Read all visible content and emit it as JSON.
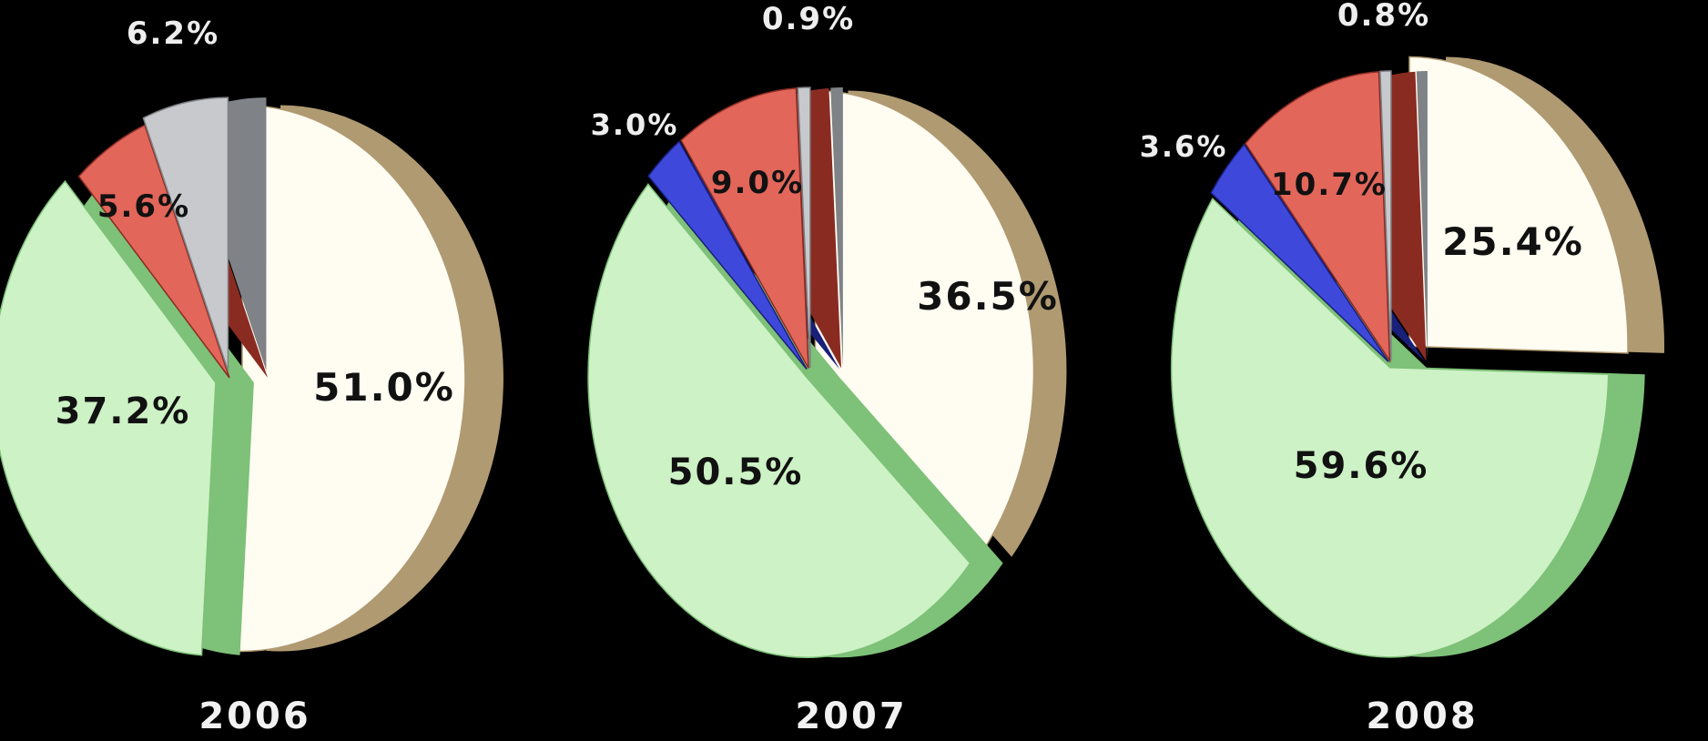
{
  "chart_data": [
    {
      "type": "pie",
      "title": "2006",
      "slices": [
        {
          "value": 51.0,
          "label": "51.0%",
          "color": "#fffdf2",
          "edge": "#b09a72"
        },
        {
          "value": 37.2,
          "label": "37.2%",
          "color": "#cdf2c5",
          "edge": "#7ec178"
        },
        {
          "value": 5.6,
          "label": "5.6%",
          "color": "#e2665a",
          "edge": "#8a2b22"
        },
        {
          "value": 6.2,
          "label": "6.2%",
          "color": "#c7c9cc",
          "edge": "#7f8286"
        }
      ]
    },
    {
      "type": "pie",
      "title": "2007",
      "slices": [
        {
          "value": 36.5,
          "label": "36.5%",
          "color": "#fffdf2",
          "edge": "#b09a72"
        },
        {
          "value": 50.5,
          "label": "50.5%",
          "color": "#cdf2c5",
          "edge": "#7ec178"
        },
        {
          "value": 3.0,
          "label": "3.0%",
          "color": "#3e49dc",
          "edge": "#1a1f7a"
        },
        {
          "value": 9.0,
          "label": "9.0%",
          "color": "#e2665a",
          "edge": "#8a2b22"
        },
        {
          "value": 0.9,
          "label": "0.9%",
          "color": "#c7c9cc",
          "edge": "#7f8286"
        }
      ]
    },
    {
      "type": "pie",
      "title": "2008",
      "slices": [
        {
          "value": 25.4,
          "label": "25.4%",
          "color": "#fffdf2",
          "edge": "#b09a72"
        },
        {
          "value": 59.6,
          "label": "59.6%",
          "color": "#cdf2c5",
          "edge": "#7ec178"
        },
        {
          "value": 3.6,
          "label": "3.6%",
          "color": "#3e49dc",
          "edge": "#1a1f7a"
        },
        {
          "value": 10.7,
          "label": "10.7%",
          "color": "#e2665a",
          "edge": "#8a2b22"
        },
        {
          "value": 0.8,
          "label": "0.8%",
          "color": "#c7c9cc",
          "edge": "#7f8286"
        }
      ]
    }
  ]
}
